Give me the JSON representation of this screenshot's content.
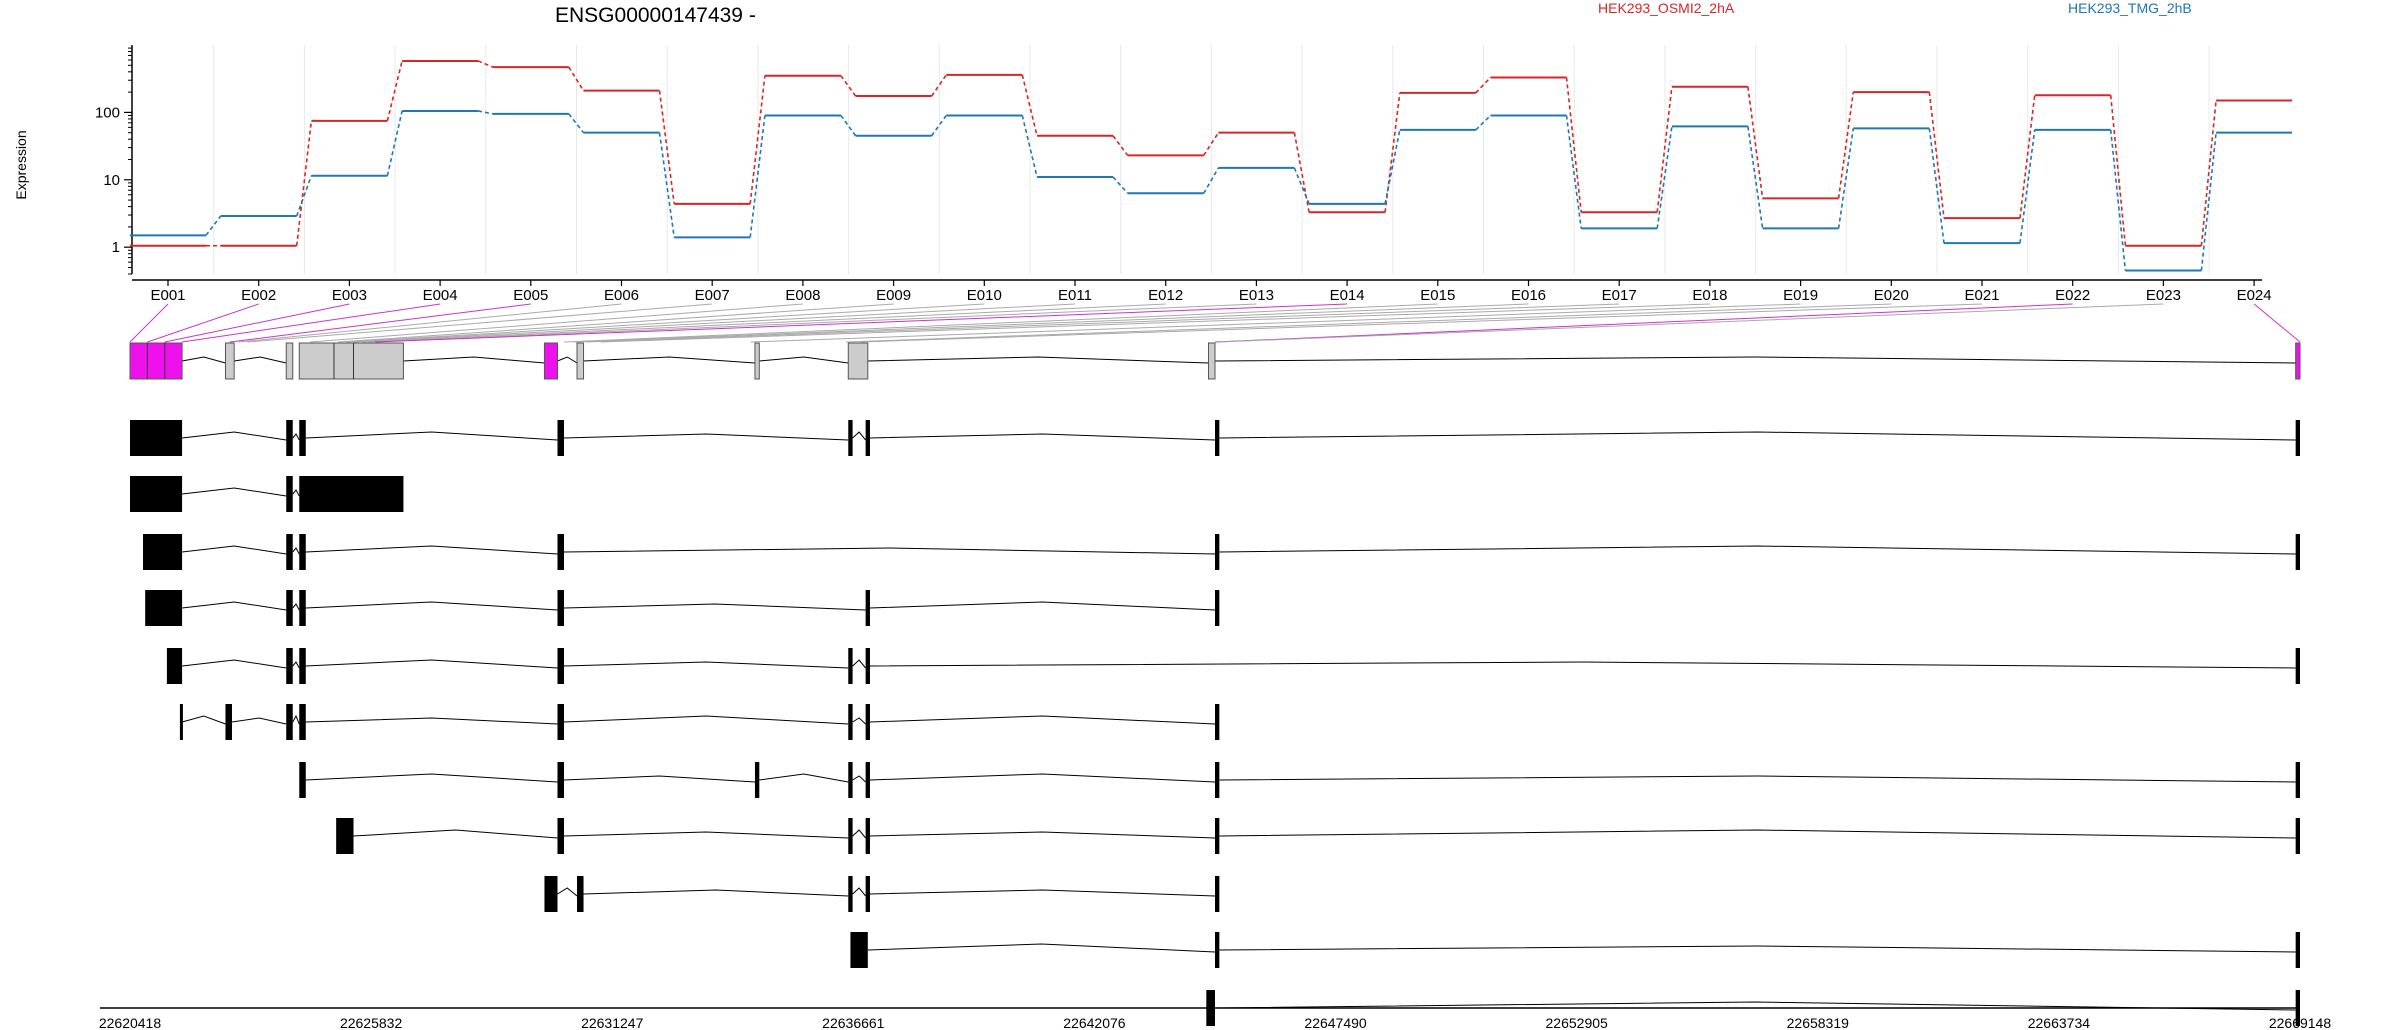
{
  "chart_data": {
    "type": "line",
    "title": "ENSG00000147439 -",
    "ylabel": "Expression",
    "y_scale": "log",
    "y_ticks": [
      1,
      10,
      100
    ],
    "y_tick_labels": [
      "1",
      "10",
      "100"
    ],
    "grid": "vertical",
    "legend_placement": "top-right",
    "categories": [
      "E001",
      "E002",
      "E003",
      "E004",
      "E005",
      "E006",
      "E007",
      "E008",
      "E009",
      "E010",
      "E011",
      "E012",
      "E013",
      "E014",
      "E015",
      "E016",
      "E017",
      "E018",
      "E019",
      "E020",
      "E021",
      "E022",
      "E023",
      "E024"
    ],
    "series": [
      {
        "name": "HEK293_OSMI2_2hA",
        "color": "#d62728",
        "values": [
          1.05,
          1.05,
          75,
          580,
          470,
          210,
          4.4,
          350,
          175,
          360,
          45,
          23,
          50,
          3.3,
          195,
          330,
          3.3,
          240,
          5.3,
          200,
          2.7,
          180,
          1.05,
          150
        ]
      },
      {
        "name": "HEK293_TMG_2hB",
        "color": "#1f77b4",
        "values": [
          1.5,
          2.9,
          11.5,
          105,
          95,
          50,
          1.4,
          90,
          45,
          90,
          11,
          6.3,
          15,
          4.4,
          55,
          90,
          1.9,
          62,
          1.9,
          58,
          1.15,
          55,
          0.45,
          50
        ]
      }
    ],
    "gene_model": {
      "exon_color": "#ee11ee",
      "start_label": "22620418",
      "end_label": "22669148",
      "coordinate_labels": [
        "22620418",
        "22625832",
        "22631247",
        "22636661",
        "22642076",
        "22647490",
        "22652905",
        "22658319",
        "22663734",
        "22669148"
      ]
    }
  }
}
